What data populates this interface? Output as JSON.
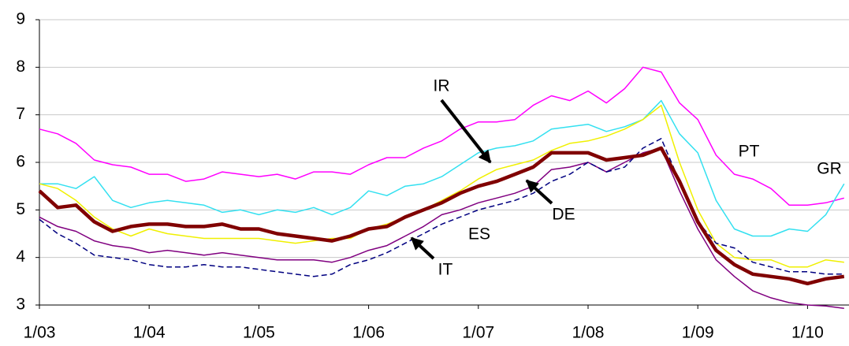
{
  "chart_data": {
    "type": "line",
    "categories": [
      "1/03",
      null,
      null,
      null,
      null,
      null,
      "1/04",
      null,
      null,
      null,
      null,
      null,
      "1/05",
      null,
      null,
      null,
      null,
      null,
      "1/06",
      null,
      null,
      null,
      null,
      null,
      "1/07",
      null,
      null,
      null,
      null,
      null,
      "1/08",
      null,
      null,
      null,
      null,
      null,
      "1/09",
      null,
      null,
      null,
      null,
      null,
      "1/10",
      null,
      null
    ],
    "ylim": [
      3,
      9
    ],
    "yticks": [
      3,
      4,
      5,
      6,
      7,
      8,
      9
    ],
    "grid": true,
    "series": [
      {
        "name": "PT",
        "color": "#ff00ff",
        "line_width": 1.5,
        "line_style": "solid",
        "values": [
          6.7,
          6.6,
          6.4,
          6.05,
          5.95,
          5.9,
          5.75,
          5.75,
          5.6,
          5.65,
          5.8,
          5.75,
          5.7,
          5.75,
          5.65,
          5.8,
          5.8,
          5.75,
          5.95,
          6.1,
          6.1,
          6.3,
          6.45,
          6.7,
          6.85,
          6.85,
          6.9,
          7.2,
          7.4,
          7.3,
          7.5,
          7.25,
          7.55,
          8.0,
          7.9,
          7.25,
          6.9,
          6.15,
          5.75,
          5.65,
          5.45,
          5.1,
          5.1,
          5.15,
          5.25
        ]
      },
      {
        "name": "GR",
        "color": "#33e0f0",
        "line_width": 1.5,
        "line_style": "solid",
        "values": [
          5.55,
          5.55,
          5.45,
          5.7,
          5.2,
          5.05,
          5.15,
          5.2,
          5.15,
          5.1,
          4.95,
          5.0,
          4.9,
          5.0,
          4.95,
          5.05,
          4.9,
          5.05,
          5.4,
          5.3,
          5.5,
          5.55,
          5.7,
          5.95,
          6.2,
          6.3,
          6.35,
          6.45,
          6.7,
          6.75,
          6.8,
          6.65,
          6.75,
          6.9,
          7.3,
          6.6,
          6.2,
          5.2,
          4.6,
          4.45,
          4.45,
          4.6,
          4.55,
          4.9,
          5.55
        ]
      },
      {
        "name": "IR",
        "color": "#f0f000",
        "line_width": 1.5,
        "line_style": "solid",
        "values": [
          5.55,
          5.45,
          5.2,
          4.85,
          4.6,
          4.45,
          4.6,
          4.5,
          4.45,
          4.4,
          4.4,
          4.4,
          4.4,
          4.35,
          4.3,
          4.35,
          4.4,
          4.4,
          4.6,
          4.7,
          4.85,
          5.0,
          5.2,
          5.4,
          5.65,
          5.85,
          5.95,
          6.05,
          6.25,
          6.4,
          6.45,
          6.55,
          6.7,
          6.9,
          7.2,
          6.0,
          5.0,
          4.3,
          4.0,
          3.95,
          3.95,
          3.8,
          3.8,
          3.95,
          3.9
        ]
      },
      {
        "name": "DE",
        "color": "#800000",
        "line_width": 4.5,
        "line_style": "solid",
        "values": [
          5.4,
          5.05,
          5.1,
          4.75,
          4.55,
          4.65,
          4.7,
          4.7,
          4.65,
          4.65,
          4.7,
          4.6,
          4.6,
          4.5,
          4.45,
          4.4,
          4.35,
          4.45,
          4.6,
          4.65,
          4.85,
          5.0,
          5.15,
          5.35,
          5.5,
          5.6,
          5.75,
          5.9,
          6.2,
          6.2,
          6.2,
          6.05,
          6.1,
          6.15,
          6.3,
          5.6,
          4.75,
          4.15,
          3.85,
          3.65,
          3.6,
          3.55,
          3.45,
          3.55,
          3.6
        ]
      },
      {
        "name": "IT",
        "color": "#800080",
        "line_width": 1.5,
        "line_style": "solid",
        "values": [
          4.85,
          4.65,
          4.55,
          4.35,
          4.25,
          4.2,
          4.1,
          4.15,
          4.1,
          4.05,
          4.1,
          4.05,
          4.0,
          3.95,
          3.95,
          3.95,
          3.9,
          4.0,
          4.15,
          4.25,
          4.45,
          4.65,
          4.9,
          5.0,
          5.15,
          5.25,
          5.35,
          5.5,
          5.85,
          5.9,
          6.0,
          5.8,
          6.0,
          6.2,
          6.3,
          5.4,
          4.6,
          3.95,
          3.6,
          3.3,
          3.15,
          3.05,
          3.0,
          2.98,
          2.93
        ]
      },
      {
        "name": "ES",
        "color": "#000080",
        "line_width": 1.5,
        "line_style": "dashed",
        "values": [
          4.8,
          4.5,
          4.3,
          4.05,
          4.0,
          3.95,
          3.85,
          3.8,
          3.8,
          3.85,
          3.8,
          3.8,
          3.75,
          3.7,
          3.65,
          3.6,
          3.65,
          3.85,
          3.95,
          4.1,
          4.3,
          4.5,
          4.7,
          4.85,
          5.0,
          5.1,
          5.2,
          5.35,
          5.6,
          5.75,
          6.0,
          5.8,
          5.9,
          6.3,
          6.5,
          5.6,
          4.75,
          4.3,
          4.2,
          3.9,
          3.8,
          3.7,
          3.7,
          3.65,
          3.65
        ]
      }
    ]
  }
}
